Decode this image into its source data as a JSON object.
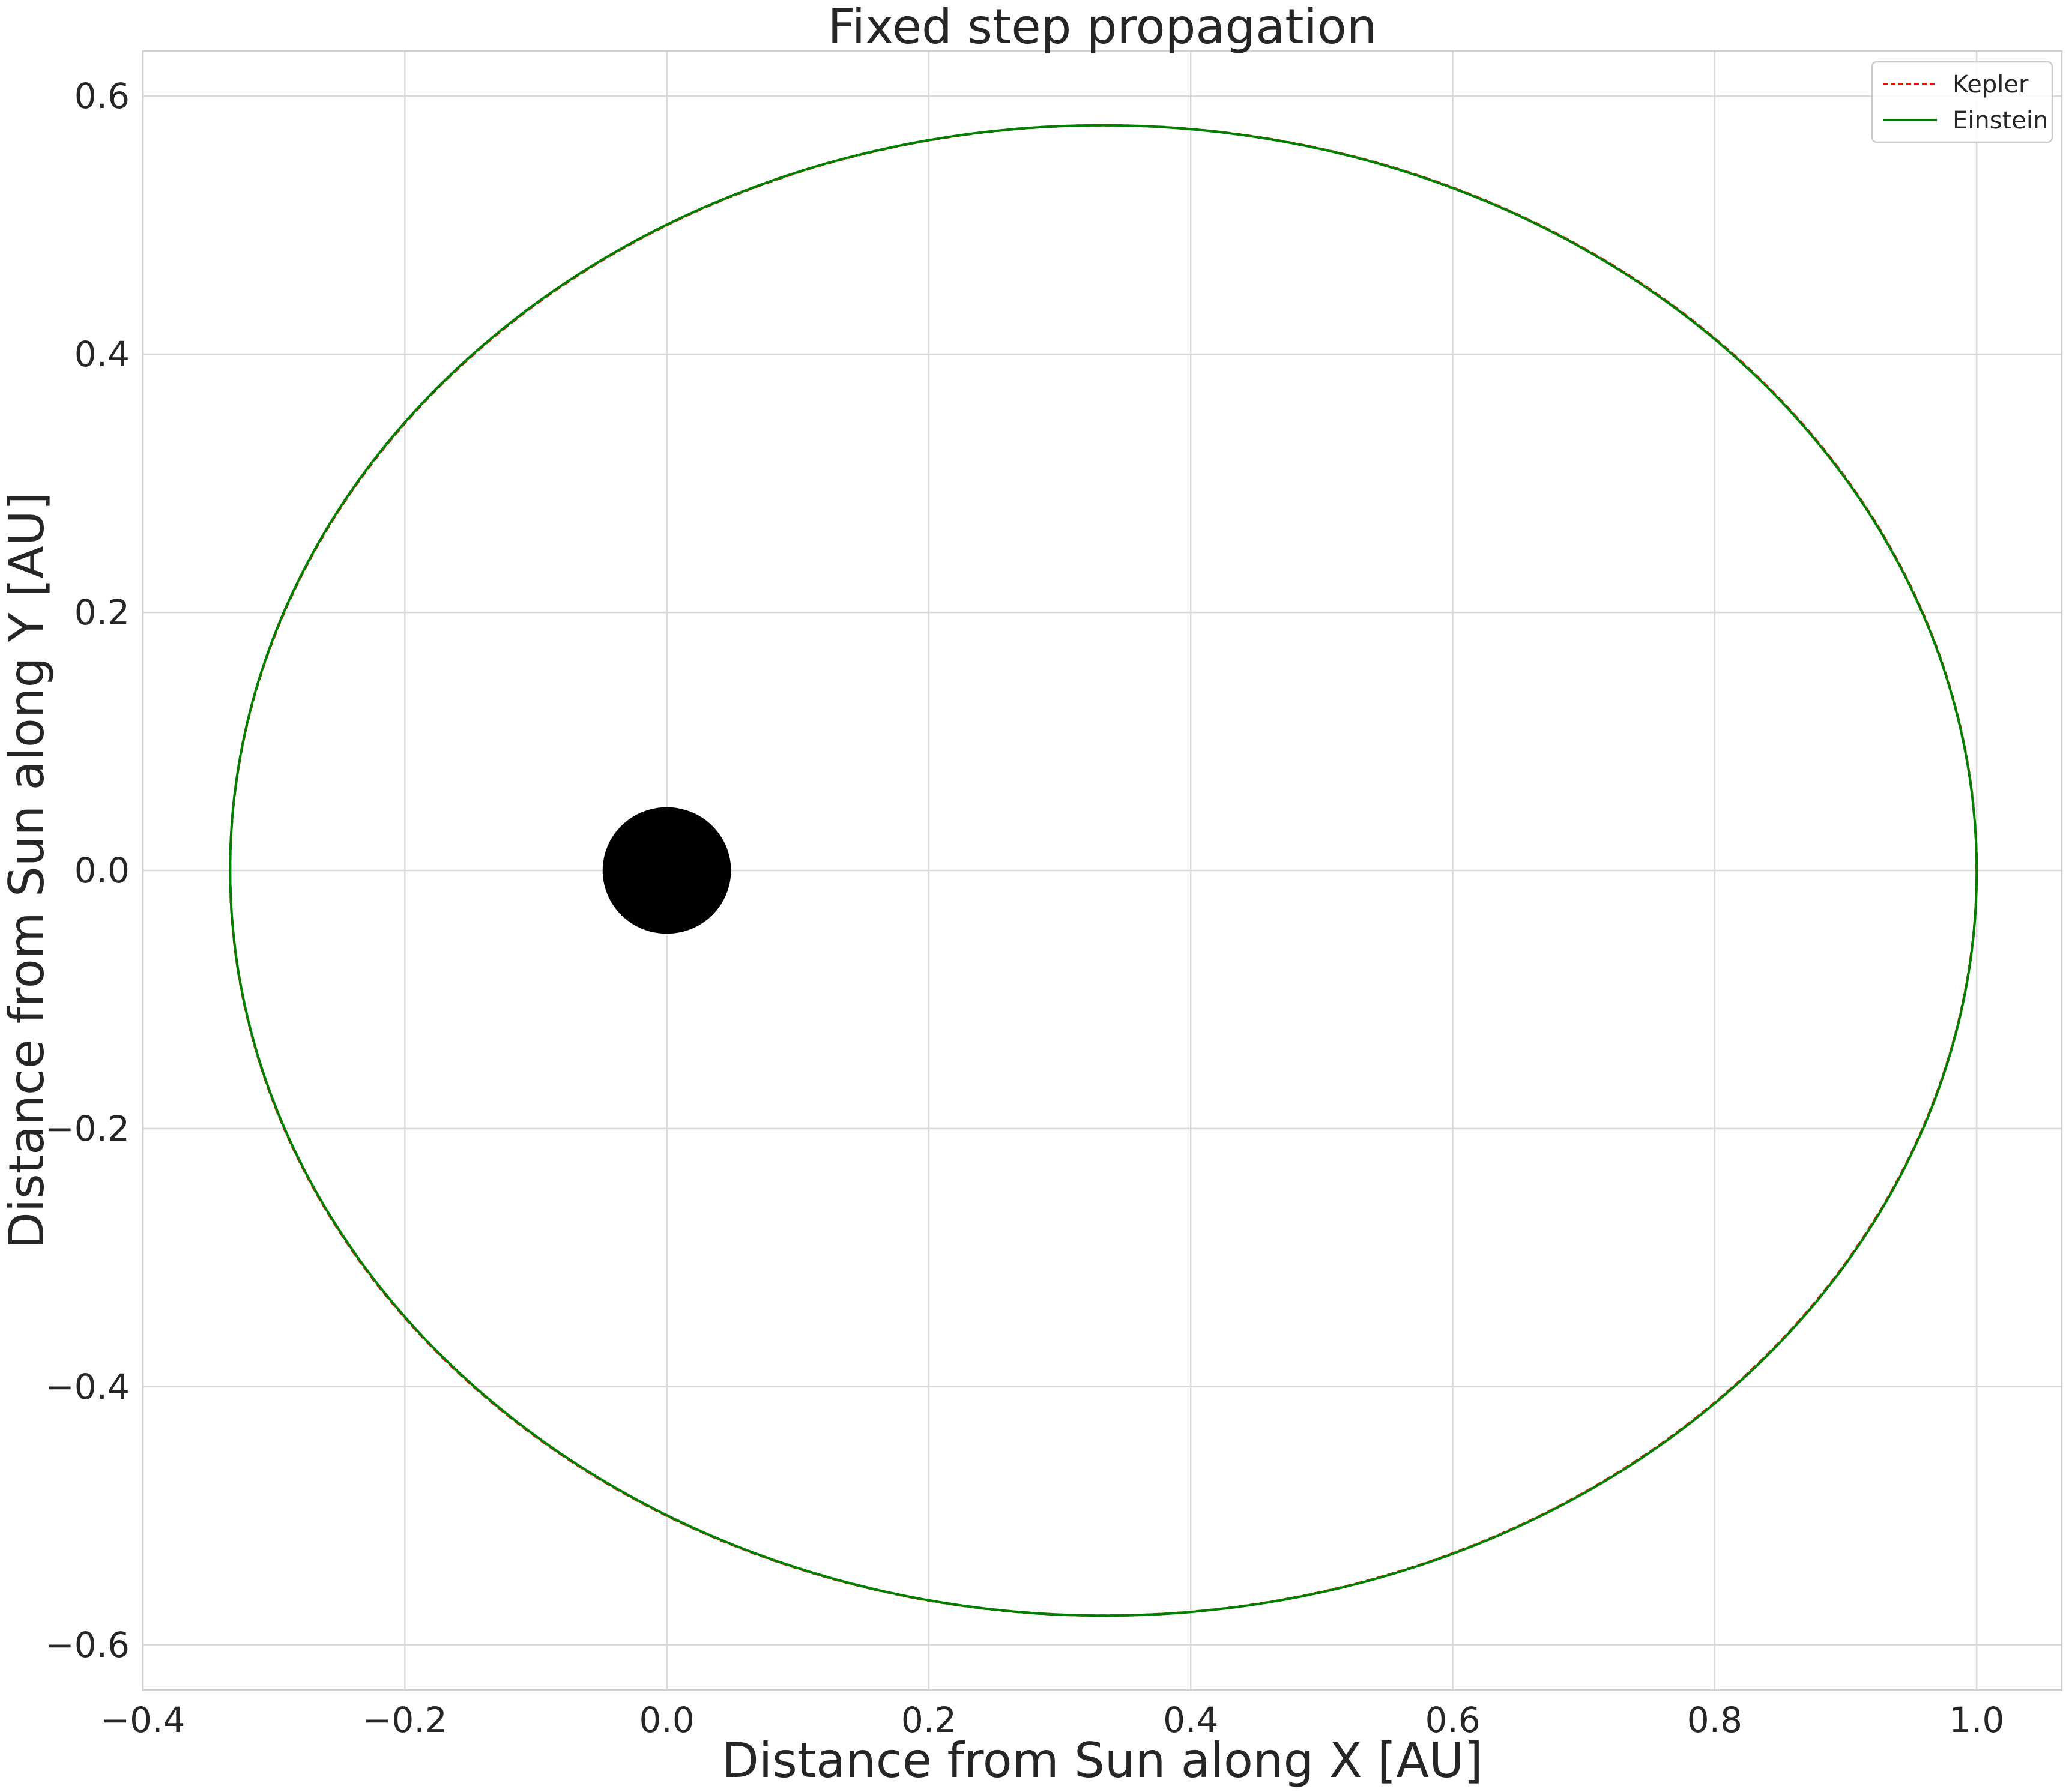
{
  "chart_data": {
    "type": "line",
    "title": "Fixed step propagation",
    "xlabel": "Distance from Sun along X [AU]",
    "ylabel": "Distance from Sun along Y [AU]",
    "xlim": [
      -0.4,
      1.065
    ],
    "ylim": [
      -0.635,
      0.635
    ],
    "xticks": [
      -0.4,
      -0.2,
      0.0,
      0.2,
      0.4,
      0.6,
      0.8,
      1.0
    ],
    "yticks": [
      -0.6,
      -0.4,
      -0.2,
      0.0,
      0.2,
      0.4,
      0.6
    ],
    "xtick_labels": [
      "−0.4",
      "−0.2",
      "0.0",
      "0.2",
      "0.4",
      "0.6",
      "0.8",
      "1.0"
    ],
    "ytick_labels": [
      "−0.6",
      "−0.4",
      "−0.2",
      "0.0",
      "0.2",
      "0.4",
      "0.6"
    ],
    "grid": true,
    "legend_position": "top-right",
    "sun": {
      "x": 0.0,
      "y": 0.0,
      "radius": 0.049,
      "color": "#000000"
    },
    "series": [
      {
        "name": "Kepler",
        "color": "#ff0000",
        "dash": "dashed",
        "orbit": {
          "center_x": 0.3333,
          "center_y": 0.0,
          "semi_major": 0.6667,
          "semi_minor": 0.5774,
          "rotation_deg": 0.0
        }
      },
      {
        "name": "Einstein",
        "color": "#008000",
        "dash": "solid",
        "orbit": {
          "center_x": 0.3333,
          "center_y": 0.0,
          "semi_major": 0.6667,
          "semi_minor": 0.5774,
          "rotation_deg": -0.3
        }
      }
    ]
  }
}
